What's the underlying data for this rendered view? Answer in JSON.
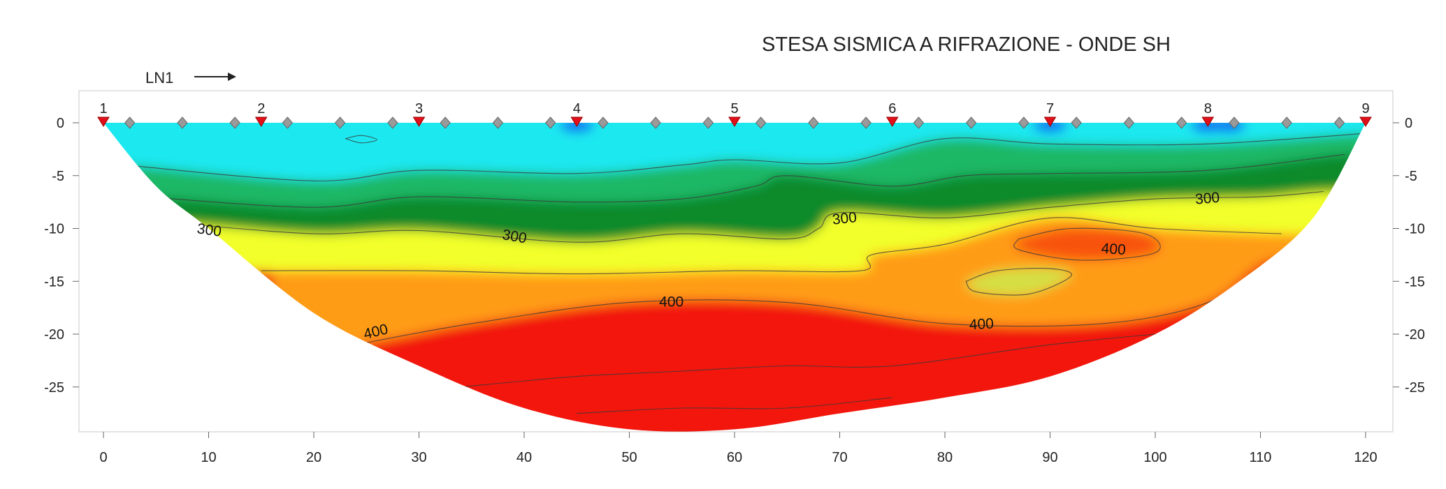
{
  "chart_data": {
    "type": "heatmap",
    "title": "STESA SISMICA A RIFRAZIONE - ONDE SH",
    "line_label": "LN1",
    "xlabel": "",
    "ylabel": "",
    "xlim": [
      -2,
      122
    ],
    "ylim": [
      -29.5,
      3
    ],
    "x_ticks": [
      "0",
      "10",
      "20",
      "30",
      "40",
      "50",
      "60",
      "70",
      "80",
      "90",
      "100",
      "110",
      "120"
    ],
    "y_ticks": [
      "0",
      "-5",
      "-10",
      "-15",
      "-20",
      "-25"
    ],
    "grid": false,
    "geophones": [
      {
        "label": "1",
        "x": 0
      },
      {
        "label": "2",
        "x": 15
      },
      {
        "label": "3",
        "x": 30
      },
      {
        "label": "4",
        "x": 45
      },
      {
        "label": "5",
        "x": 60
      },
      {
        "label": "6",
        "x": 75
      },
      {
        "label": "7",
        "x": 90
      },
      {
        "label": "8",
        "x": 105
      },
      {
        "label": "9",
        "x": 120
      }
    ],
    "shot_points_x": [
      2.5,
      7.5,
      12.5,
      17.5,
      22.5,
      27.5,
      32.5,
      37.5,
      42.5,
      47.5,
      52.5,
      57.5,
      62.5,
      67.5,
      72.5,
      77.5,
      82.5,
      87.5,
      92.5,
      97.5,
      102.5,
      107.5,
      112.5,
      117.5
    ],
    "model_bottom": [
      [
        0,
        0
      ],
      [
        5,
        -6
      ],
      [
        10,
        -10
      ],
      [
        20,
        -18
      ],
      [
        30,
        -23
      ],
      [
        40,
        -27
      ],
      [
        50,
        -29
      ],
      [
        60,
        -29
      ],
      [
        70,
        -27.5
      ],
      [
        80,
        -26
      ],
      [
        90,
        -24
      ],
      [
        100,
        -20
      ],
      [
        108,
        -15
      ],
      [
        115,
        -9
      ],
      [
        120,
        0
      ]
    ],
    "color_scale": [
      {
        "value": 160,
        "color": "#0a3ff0"
      },
      {
        "value": 200,
        "color": "#1fe8f0"
      },
      {
        "value": 250,
        "color": "#1eb866"
      },
      {
        "value": 300,
        "color": "#0e8a2c"
      },
      {
        "value": 340,
        "color": "#f2ff2a"
      },
      {
        "value": 400,
        "color": "#ff9c14"
      },
      {
        "value": 440,
        "color": "#f2160c"
      }
    ],
    "contours": [
      {
        "label": "",
        "points": [
          [
            2,
            -4
          ],
          [
            20,
            -5.5
          ],
          [
            30,
            -4.5
          ],
          [
            45,
            -4.8
          ],
          [
            55,
            -4
          ],
          [
            60,
            -3.5
          ],
          [
            70,
            -3.8
          ],
          [
            80,
            -1.5
          ],
          [
            90,
            -2
          ],
          [
            105,
            -2
          ],
          [
            120,
            -1
          ]
        ]
      },
      {
        "label": "",
        "points": [
          [
            4,
            -7
          ],
          [
            20,
            -8
          ],
          [
            30,
            -7
          ],
          [
            45,
            -7.5
          ],
          [
            55,
            -7.2
          ],
          [
            62,
            -6
          ],
          [
            65,
            -5
          ],
          [
            75,
            -6
          ],
          [
            82,
            -5
          ],
          [
            90,
            -4.8
          ],
          [
            105,
            -4.5
          ],
          [
            118,
            -3
          ]
        ]
      },
      {
        "label": "300",
        "points": [
          [
            7,
            -9.5
          ],
          [
            20,
            -10.5
          ],
          [
            30,
            -10.2
          ],
          [
            45,
            -11.3
          ],
          [
            55,
            -10.5
          ],
          [
            65,
            -11
          ],
          [
            68,
            -10
          ],
          [
            70,
            -8.5
          ],
          [
            80,
            -9
          ],
          [
            90,
            -8
          ],
          [
            100,
            -7.2
          ],
          [
            110,
            -7
          ],
          [
            116,
            -6.5
          ]
        ]
      },
      {
        "label": "",
        "points": [
          [
            15,
            -14
          ],
          [
            30,
            -14
          ],
          [
            45,
            -14.3
          ],
          [
            60,
            -14
          ],
          [
            72,
            -14
          ],
          [
            73,
            -12.5
          ],
          [
            80,
            -11.5
          ],
          [
            90,
            -9
          ],
          [
            100,
            -10
          ],
          [
            112,
            -10.5
          ]
        ]
      },
      {
        "label": "400",
        "points": [
          [
            24,
            -21
          ],
          [
            35,
            -19
          ],
          [
            50,
            -17
          ],
          [
            65,
            -17
          ],
          [
            80,
            -19
          ],
          [
            95,
            -19
          ],
          [
            105,
            -17
          ],
          [
            111,
            -13
          ]
        ]
      },
      {
        "label": "",
        "points": [
          [
            34,
            -25
          ],
          [
            45,
            -24
          ],
          [
            55,
            -23.5
          ],
          [
            65,
            -23
          ],
          [
            75,
            -23
          ],
          [
            90,
            -21
          ],
          [
            100,
            -20
          ]
        ]
      },
      {
        "label": "",
        "points": [
          [
            45,
            -27.5
          ],
          [
            55,
            -27
          ],
          [
            65,
            -27
          ],
          [
            75,
            -26
          ]
        ]
      }
    ],
    "closed_contours": [
      {
        "label": "400",
        "points": [
          [
            87,
            -11
          ],
          [
            92,
            -10
          ],
          [
            99,
            -10.5
          ],
          [
            100,
            -12.3
          ],
          [
            93,
            -13
          ],
          [
            87,
            -12
          ]
        ]
      },
      {
        "label": "",
        "points": [
          [
            82,
            -15
          ],
          [
            85,
            -14
          ],
          [
            90,
            -13.8
          ],
          [
            92,
            -14.5
          ],
          [
            88,
            -16.2
          ],
          [
            83,
            -16
          ]
        ]
      },
      {
        "label": "",
        "points": [
          [
            23,
            -1.5
          ],
          [
            24.5,
            -1.2
          ],
          [
            26,
            -1.6
          ],
          [
            24.5,
            -1.9
          ]
        ]
      }
    ],
    "shallow_low_velocity_spots_x": [
      45,
      90,
      105,
      107
    ]
  }
}
